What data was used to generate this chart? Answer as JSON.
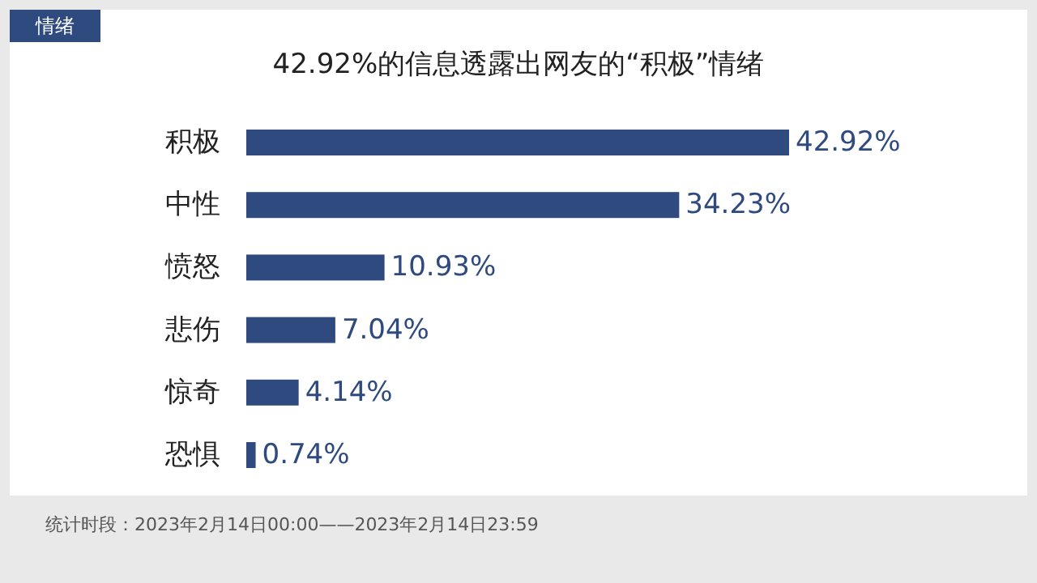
{
  "chart_data": {
    "type": "bar",
    "orientation": "horizontal",
    "title": "42.92%的信息透露出网友的“积极”情绪",
    "categories": [
      "积极",
      "中性",
      "愤怒",
      "悲伤",
      "惊奇",
      "恐惧"
    ],
    "values": [
      42.92,
      34.23,
      10.93,
      7.04,
      4.14,
      0.74
    ],
    "color": "#2e4a7f",
    "value_labels": [
      "42.92%",
      "34.23%",
      "10.93%",
      "7.04%",
      "4.14%",
      "0.74%"
    ],
    "annotations": [
      "情绪",
      "统计时段：2023年2月14日00:00——2023年2月14日23:59"
    ]
  }
}
